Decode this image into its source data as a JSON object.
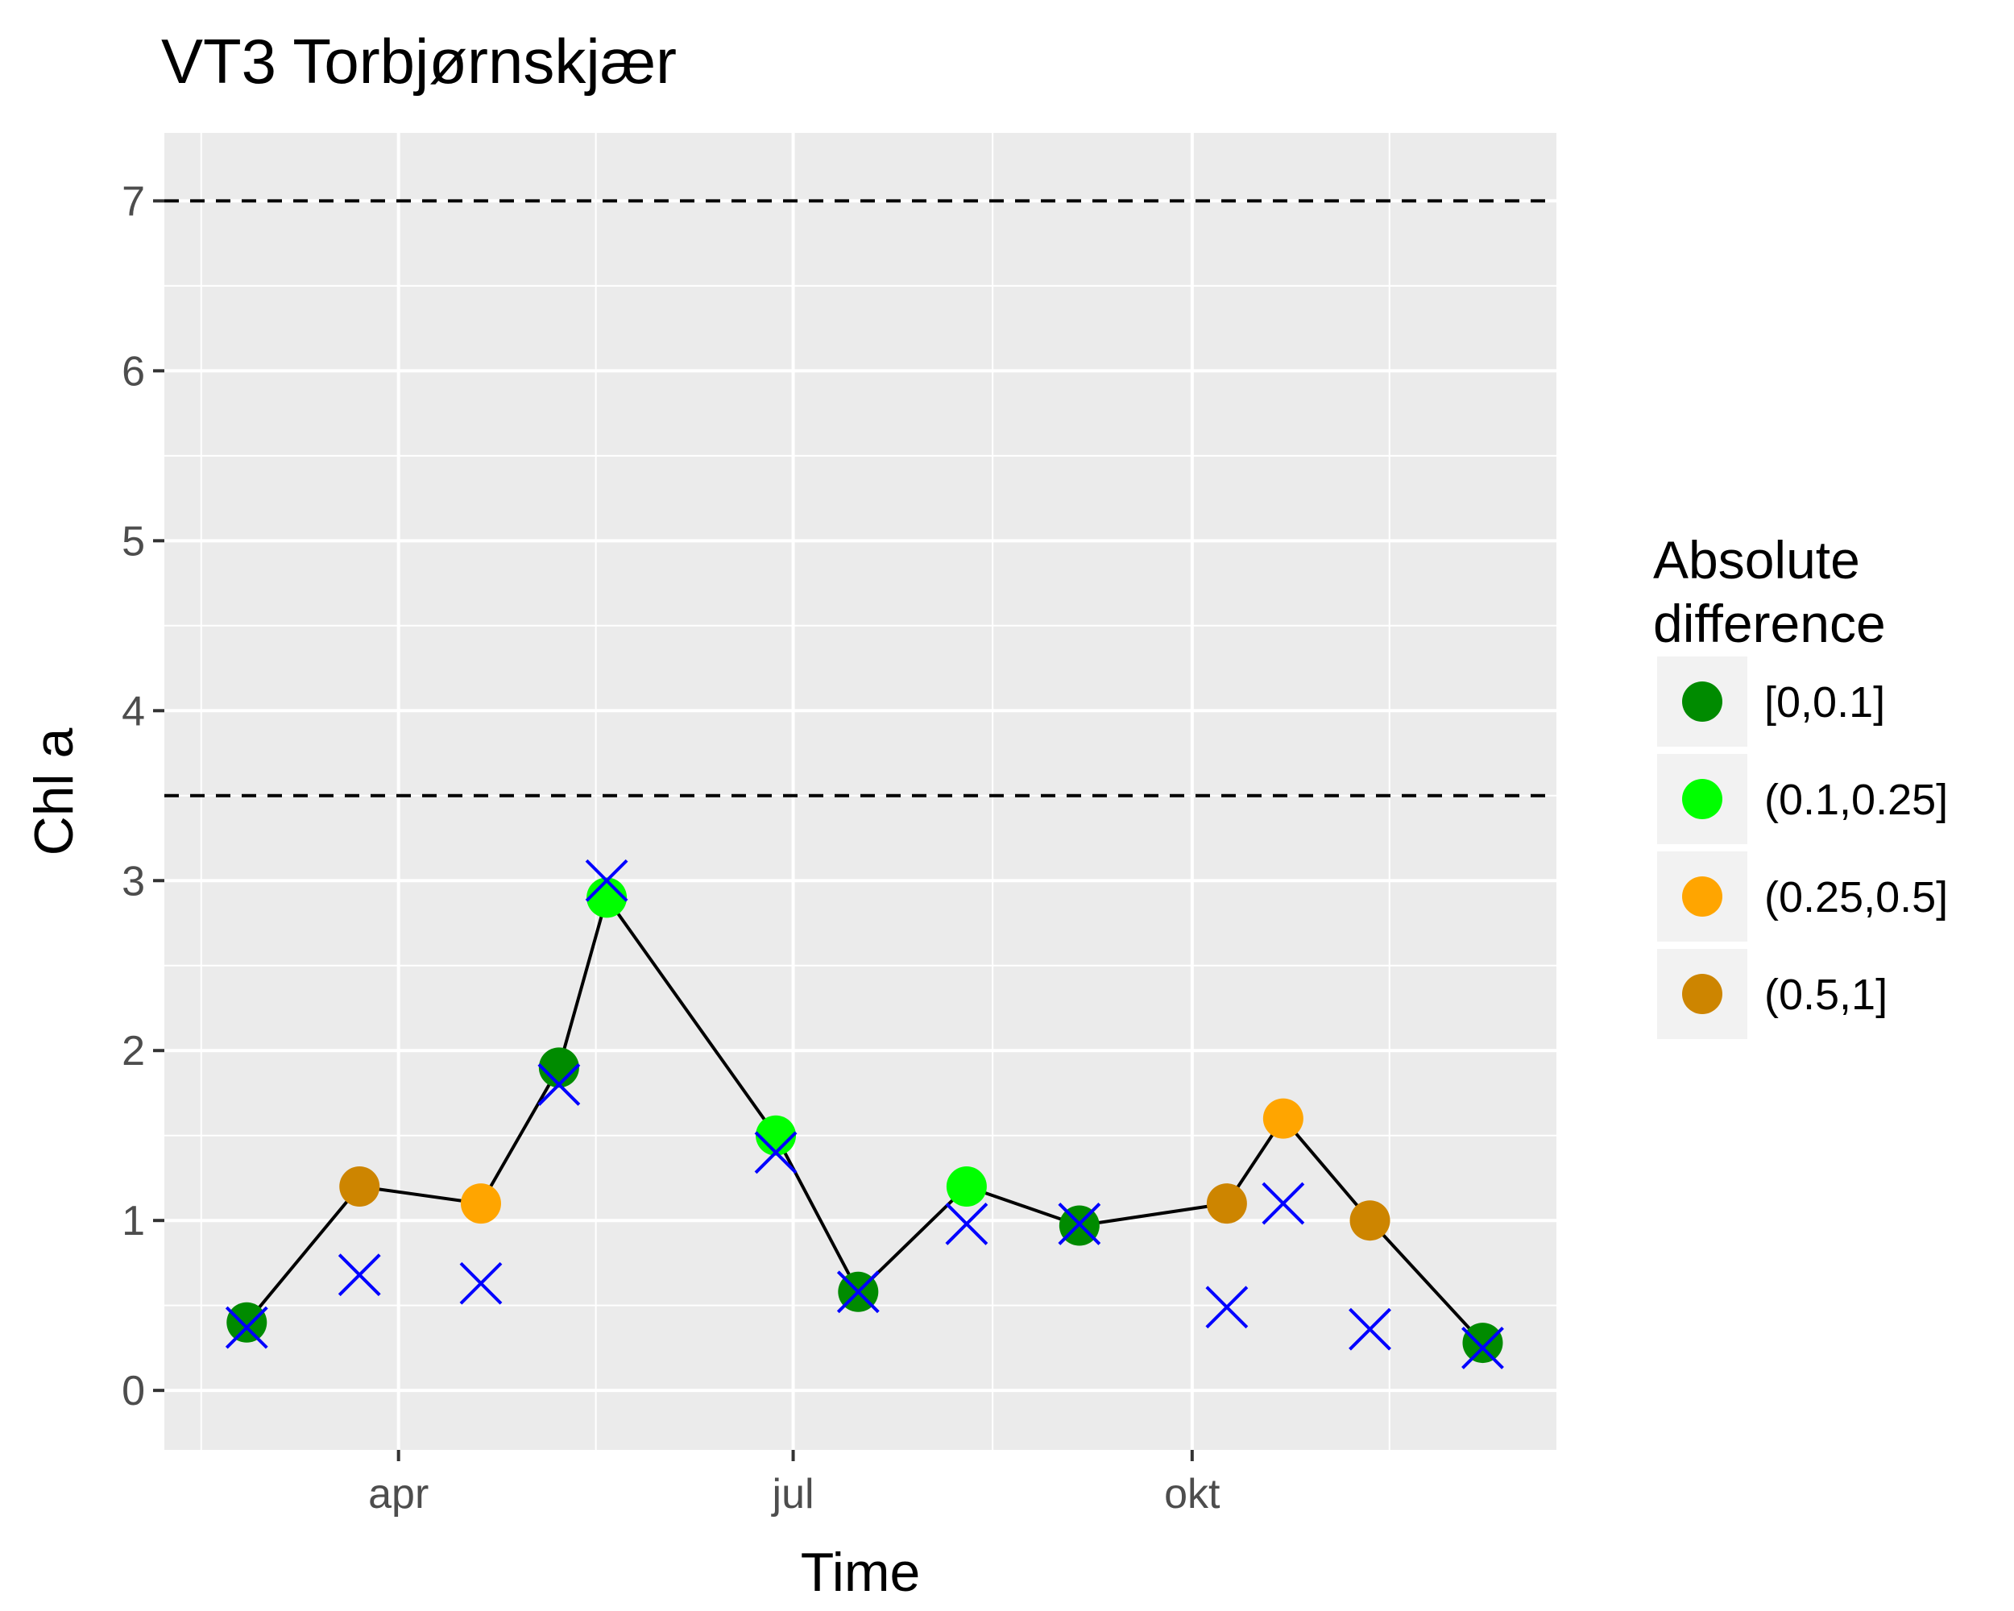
{
  "chart_data": {
    "type": "scatter",
    "title": "VT3 Torbjørnskjær",
    "xlabel": "Time",
    "ylabel": "Chl a",
    "x_tick_labels": [
      "apr",
      "jul",
      "okt"
    ],
    "x_tick_dates": [
      "2019-04-01",
      "2019-07-01",
      "2019-10-01"
    ],
    "xlim": [
      "2019-02-06",
      "2019-12-24"
    ],
    "ylim": [
      -0.35,
      7.4
    ],
    "y_ticks": [
      0,
      1,
      2,
      3,
      4,
      5,
      6,
      7
    ],
    "grid": true,
    "reference_lines": [
      {
        "y": 7,
        "style": "dashed"
      },
      {
        "y": 3.5,
        "style": "dashed"
      }
    ],
    "series": [
      {
        "mark": "line+point",
        "points": [
          {
            "x": "2019-02-25",
            "y": 0.4,
            "class": "[0,0.1]"
          },
          {
            "x": "2019-03-23",
            "y": 1.2,
            "class": "(0.5,1]"
          },
          {
            "x": "2019-04-20",
            "y": 1.1,
            "class": "(0.25,0.5]"
          },
          {
            "x": "2019-05-08",
            "y": 1.9,
            "class": "[0,0.1]"
          },
          {
            "x": "2019-05-19",
            "y": 2.9,
            "class": "(0.1,0.25]"
          },
          {
            "x": "2019-06-27",
            "y": 1.5,
            "class": "(0.1,0.25]"
          },
          {
            "x": "2019-07-16",
            "y": 0.58,
            "class": "[0,0.1]"
          },
          {
            "x": "2019-08-10",
            "y": 1.2,
            "class": "(0.1,0.25]"
          },
          {
            "x": "2019-09-05",
            "y": 0.97,
            "class": "[0,0.1]"
          },
          {
            "x": "2019-10-09",
            "y": 1.1,
            "class": "(0.5,1]"
          },
          {
            "x": "2019-10-22",
            "y": 1.6,
            "class": "(0.25,0.5]"
          },
          {
            "x": "2019-11-11",
            "y": 1.0,
            "class": "(0.5,1]"
          },
          {
            "x": "2019-12-07",
            "y": 0.28,
            "class": "[0,0.1]"
          }
        ]
      },
      {
        "mark": "cross",
        "color": "#0000FF",
        "points": [
          {
            "x": "2019-02-25",
            "y": 0.37
          },
          {
            "x": "2019-03-23",
            "y": 0.68
          },
          {
            "x": "2019-04-20",
            "y": 0.63
          },
          {
            "x": "2019-05-08",
            "y": 1.8
          },
          {
            "x": "2019-05-19",
            "y": 3.0
          },
          {
            "x": "2019-06-27",
            "y": 1.4
          },
          {
            "x": "2019-07-16",
            "y": 0.58
          },
          {
            "x": "2019-08-10",
            "y": 0.98
          },
          {
            "x": "2019-09-05",
            "y": 0.98
          },
          {
            "x": "2019-10-09",
            "y": 0.49
          },
          {
            "x": "2019-10-22",
            "y": 1.1
          },
          {
            "x": "2019-11-11",
            "y": 0.36
          },
          {
            "x": "2019-12-07",
            "y": 0.25
          }
        ]
      }
    ],
    "legend": {
      "title_lines": [
        "Absolute",
        "difference"
      ],
      "placement": "right",
      "items": [
        {
          "label": "[0,0.1]",
          "color": "#008B00"
        },
        {
          "label": "(0.1,0.25]",
          "color": "#00FF00"
        },
        {
          "label": "(0.25,0.5]",
          "color": "#FFA500"
        },
        {
          "label": "(0.5,1]",
          "color": "#CD8500"
        }
      ]
    }
  }
}
